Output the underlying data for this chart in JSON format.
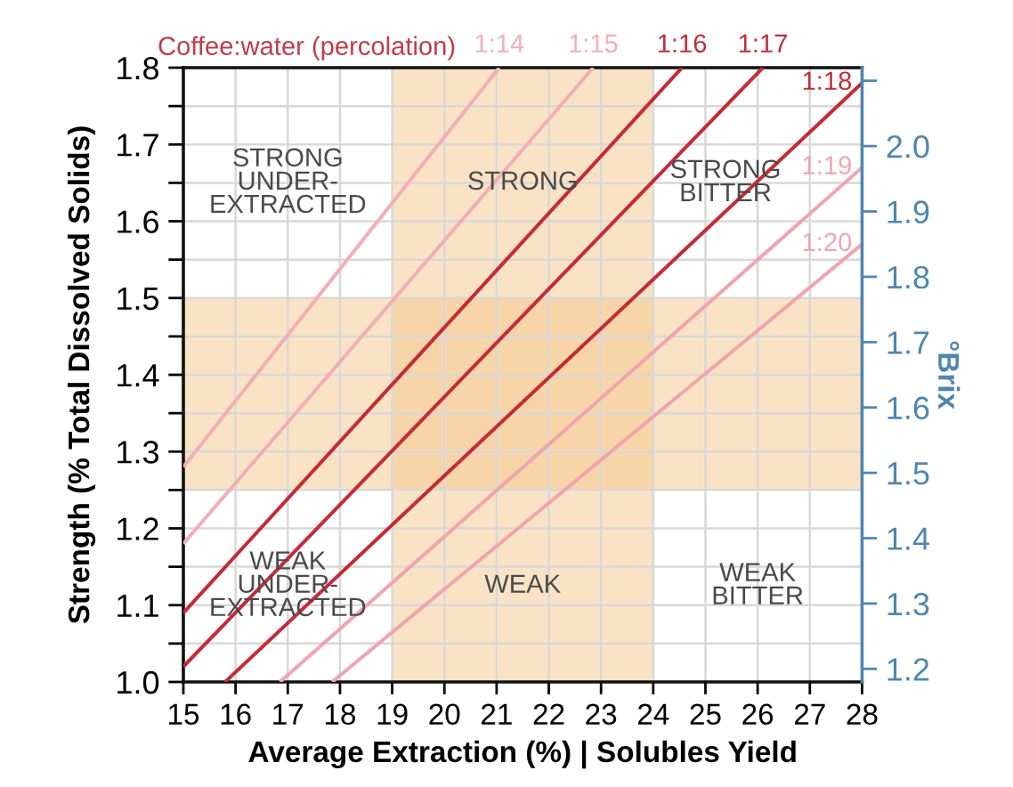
{
  "chart_data": {
    "type": "line",
    "title": "Coffee:water (percolation)",
    "xlabel": "Average Extraction (%) | Solubles Yield",
    "ylabel": "Strength (% Total Dissolved Solids)",
    "y2label": "°Brix",
    "series": [
      {
        "name": "1:14",
        "color": "#f2aeb6",
        "x": [
          15,
          21.05
        ],
        "values": [
          1.28,
          1.8
        ]
      },
      {
        "name": "1:15",
        "color": "#f2aeb6",
        "x": [
          15,
          22.85
        ],
        "values": [
          1.18,
          1.8
        ]
      },
      {
        "name": "1:16",
        "color": "#c62a36",
        "x": [
          15,
          24.55
        ],
        "values": [
          1.09,
          1.8
        ]
      },
      {
        "name": "1:17",
        "color": "#c62a36",
        "x": [
          15,
          26.1
        ],
        "values": [
          1.02,
          1.8
        ]
      },
      {
        "name": "1:18",
        "color": "#c62a36",
        "x": [
          15.8,
          28
        ],
        "values": [
          1.0,
          1.78
        ]
      },
      {
        "name": "1:19",
        "color": "#f0a4ae",
        "x": [
          16.85,
          28
        ],
        "values": [
          1.0,
          1.67
        ]
      },
      {
        "name": "1:20",
        "color": "#f0a4ae",
        "x": [
          17.85,
          28
        ],
        "values": [
          1.0,
          1.57
        ]
      }
    ],
    "bands": [
      {
        "axis": "x",
        "from": 19,
        "to": 24,
        "color": "#f5c88c"
      },
      {
        "axis": "y",
        "from": 1.25,
        "to": 1.5,
        "color": "#f5c88c"
      }
    ],
    "annotations": [
      "STRONG\nUNDER-\nEXTRACTED",
      "STRONG",
      "STRONG\nBITTER",
      "WEAK\nUNDER-\nEXTRACTED",
      "WEAK",
      "WEAK\nBITTER"
    ],
    "xlim": [
      15,
      28
    ],
    "xticks": [
      15,
      16,
      17,
      18,
      19,
      20,
      21,
      22,
      23,
      24,
      25,
      26,
      27,
      28
    ],
    "ylim": [
      1.0,
      1.8
    ],
    "yticks": [
      {
        "value": 1.0,
        "label": "1.0"
      },
      {
        "value": 1.05,
        "label": null
      },
      1.1,
      {
        "value": 1.15,
        "label": null
      },
      1.2,
      {
        "value": 1.25,
        "label": null
      },
      1.3,
      {
        "value": 1.35,
        "label": null
      },
      1.4,
      {
        "value": 1.45,
        "label": null
      },
      1.5,
      {
        "value": 1.55,
        "label": null
      },
      1.6,
      {
        "value": 1.65,
        "label": null
      },
      1.7,
      {
        "value": 1.75,
        "label": null
      },
      1.8
    ],
    "y2lim": [
      1.18,
      2.12
    ],
    "y2ticks": [
      1.2,
      1.3,
      1.4,
      1.5,
      1.6,
      1.7,
      1.8,
      1.9,
      {
        "value": 2.0,
        "label": "2.0"
      },
      {
        "value": 2.1,
        "label": null
      }
    ],
    "grid": true,
    "legend": false,
    "marker": "none",
    "line_style": "solid"
  }
}
